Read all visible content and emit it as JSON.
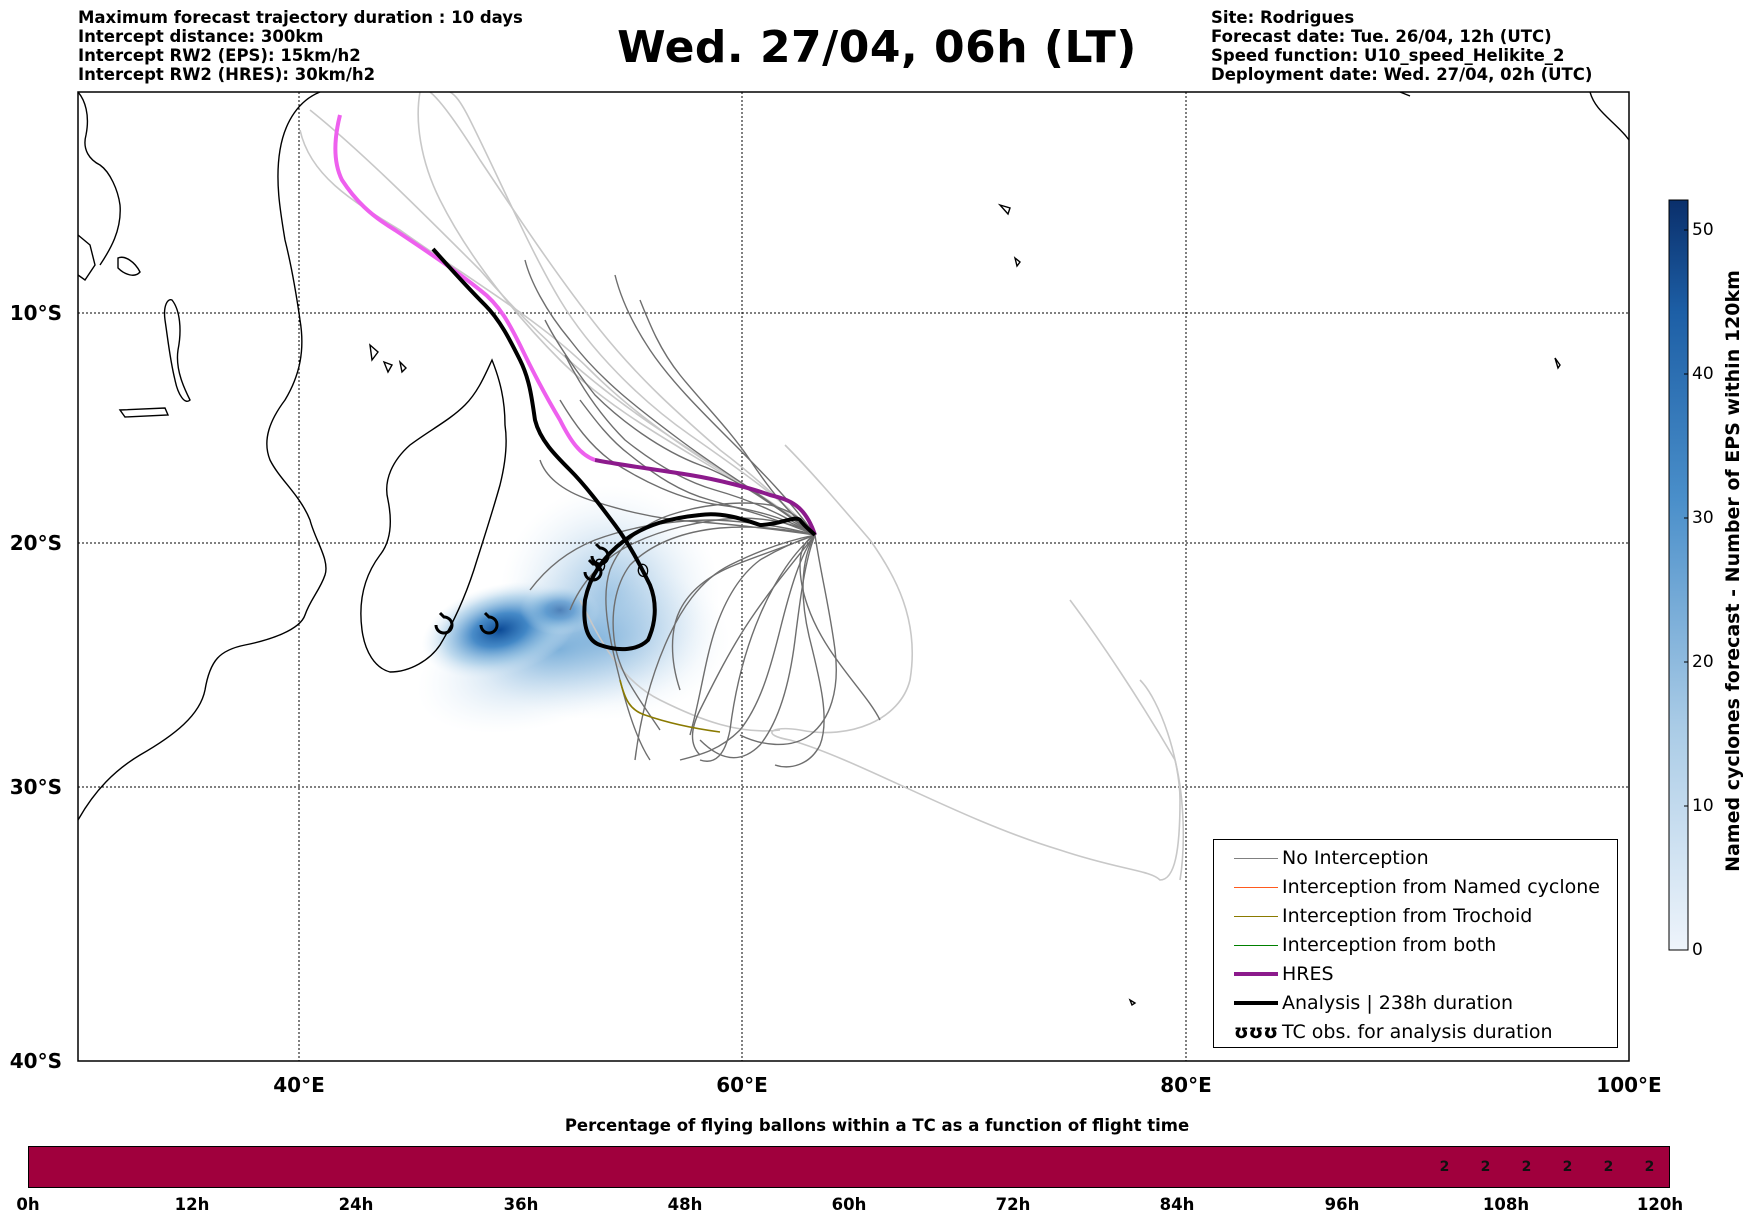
{
  "header_left": [
    "Maximum forecast trajectory duration : 10 days",
    "Intercept distance: 300km",
    "Intercept RW2 (EPS):  15km/h2",
    "Intercept RW2 (HRES): 30km/h2"
  ],
  "title": "Wed. 27/04, 06h (LT)",
  "header_right": [
    "Site: Rodrigues",
    "Forecast date: Tue. 26/04, 12h (UTC)",
    "Speed function: U10_speed_Helikite_2",
    "Deployment date: Wed. 27/04, 02h (UTC)"
  ],
  "map": {
    "lon_range": [
      30,
      100
    ],
    "lat_range": [
      -40,
      1
    ],
    "lat_ticks": [
      "10°S",
      "20°S",
      "30°S",
      "40°S"
    ],
    "lon_ticks": [
      "40°E",
      "60°E",
      "80°E",
      "100°E"
    ]
  },
  "legend": [
    {
      "label": "No Interception",
      "color": "#808080",
      "width": 1.2
    },
    {
      "label": "Interception from Named cyclone",
      "color": "#ff5a1e",
      "width": 1.2
    },
    {
      "label": "Interception from Trochoid",
      "color": "#8a7a00",
      "width": 1.2
    },
    {
      "label": "Interception from both",
      "color": "#008000",
      "width": 1.2
    },
    {
      "label": "HRES",
      "color": "#8c1a8c",
      "width": 4
    },
    {
      "label": "Analysis | 238h duration",
      "color": "#000000",
      "width": 4
    },
    {
      "label": "TC obs. for analysis duration",
      "symbol": "ʊʊʊ"
    }
  ],
  "colorbar": {
    "label": "Named cyclones forecast - Number of EPS within 120km",
    "ticks": [
      "0",
      "10",
      "20",
      "30",
      "40",
      "50"
    ],
    "colors": [
      "#e8f0f8",
      "#0a2f6b"
    ]
  },
  "bottom_bar": {
    "title": "Percentage of flying ballons within a TC as a function of flight time",
    "ticks": [
      "0h",
      "12h",
      "24h",
      "36h",
      "48h",
      "60h",
      "72h",
      "84h",
      "96h",
      "108h",
      "120h"
    ],
    "fill_color": "#a0003d",
    "cells": [
      "2",
      "2",
      "2",
      "2",
      "2",
      "2"
    ]
  }
}
